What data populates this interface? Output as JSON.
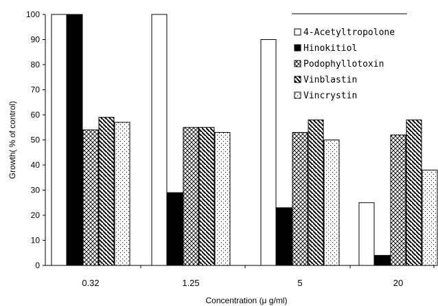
{
  "chart_data": {
    "type": "bar",
    "categories": [
      "0.32",
      "1.25",
      "5",
      "20"
    ],
    "series": [
      {
        "name": "4-Acetyltropolone",
        "values": [
          100,
          100,
          90,
          25
        ],
        "color": "#ffffff",
        "pattern": "white"
      },
      {
        "name": "Hinokitiol",
        "values": [
          100,
          29,
          23,
          4
        ],
        "color": "#000000",
        "pattern": "black"
      },
      {
        "name": "Podophyllotoxin",
        "values": [
          54,
          55,
          53,
          52
        ],
        "color": "#ffffff",
        "pattern": "crosshatch"
      },
      {
        "name": "Vinblastin",
        "values": [
          59,
          55,
          58,
          58
        ],
        "color": "#ffffff",
        "pattern": "diagonal"
      },
      {
        "name": "Vincrystin",
        "values": [
          57,
          53,
          50,
          38
        ],
        "color": "#ffffff",
        "pattern": "dots"
      }
    ],
    "title": "",
    "xlabel": "Concentration (μ g/ml)",
    "ylabel": "Growth( % of control)",
    "ylim": [
      0,
      100
    ],
    "yticks": [
      "0",
      "10",
      "20",
      "30",
      "40",
      "50",
      "60",
      "70",
      "80",
      "90",
      "100"
    ],
    "grid": false,
    "legend_position": "top-right"
  }
}
